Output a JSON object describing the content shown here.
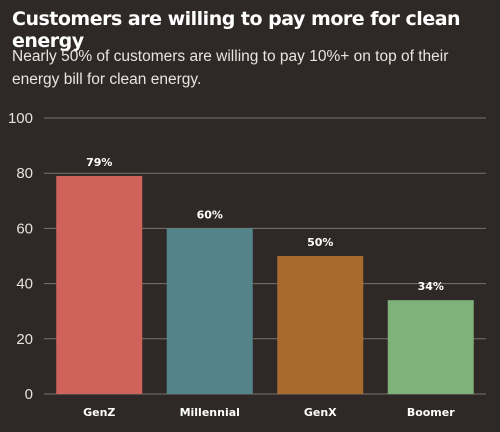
{
  "chart_data": {
    "type": "bar",
    "title": "Customers are willing to pay more for clean energy",
    "subtitle": "Nearly 50% of customers are willing to pay 10%+ on top of their energy bill for clean energy.",
    "categories": [
      "GenZ",
      "Millennial",
      "GenX",
      "Boomer"
    ],
    "values": [
      79,
      60,
      50,
      34
    ],
    "data_labels": [
      "79%",
      "60%",
      "50%",
      "34%"
    ],
    "bar_colors": [
      "#d1625b",
      "#52848a",
      "#a76b2f",
      "#7fb27a"
    ],
    "xlabel": "",
    "ylabel": "",
    "ylim": [
      0,
      100
    ],
    "yticks": [
      0,
      20,
      40,
      60,
      80,
      100
    ],
    "grid": true,
    "legend": "none"
  }
}
